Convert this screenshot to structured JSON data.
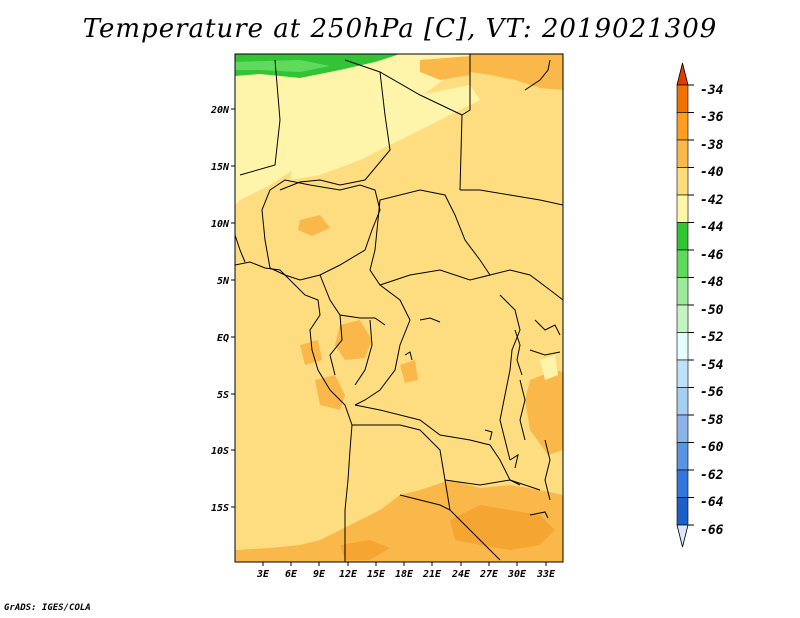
{
  "title": "Temperature at 250hPa [C], VT: 2019021309",
  "credit": "GrADS: IGES/COLA",
  "map": {
    "lon_ticks": [
      "3E",
      "6E",
      "9E",
      "12E",
      "15E",
      "18E",
      "21E",
      "24E",
      "27E",
      "30E",
      "33E"
    ],
    "lat_ticks": [
      "20N",
      "15N",
      "10N",
      "5N",
      "EQ",
      "5S",
      "10S",
      "15S"
    ]
  },
  "colorbar": {
    "labels": [
      "-34",
      "-36",
      "-38",
      "-40",
      "-42",
      "-44",
      "-46",
      "-48",
      "-50",
      "-52",
      "-54",
      "-56",
      "-58",
      "-60",
      "-62",
      "-64",
      "-66"
    ],
    "colors": [
      "#e03c00",
      "#f07000",
      "#ff9e1e",
      "#fbb848",
      "#fcdc7c",
      "#fff5a7",
      "#31c434",
      "#5ed95b",
      "#9de99a",
      "#c6f3c2",
      "#e6fdfe",
      "#bde2f7",
      "#a5cff1",
      "#8ab4e9",
      "#5894df",
      "#3277dd",
      "#1961c8",
      "#0c3fa1",
      "#06207a"
    ],
    "over_color": "#e03c00",
    "under_color": "#dde6ff"
  }
}
